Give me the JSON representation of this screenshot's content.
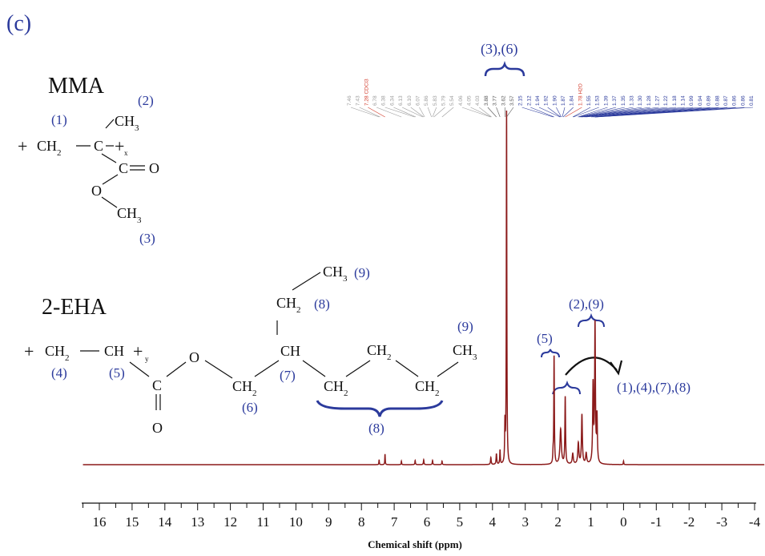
{
  "panel_label": "(c)",
  "mma": {
    "name": "MMA",
    "atoms": {
      "ch3_top": "CH",
      "ch3_top_sub": "3",
      "ch2": "CH",
      "ch2_sub": "2",
      "c": "C",
      "carbonyl_c": "C",
      "o_double": "O",
      "o_ester": "O",
      "ch3_bot": "CH",
      "ch3_bot_sub": "3",
      "x": "x"
    },
    "labels": {
      "l1": "(1)",
      "l2": "(2)",
      "l3": "(3)"
    }
  },
  "eha": {
    "name": "2-EHA",
    "atoms": {
      "ch2_main": "CH",
      "ch2_main_sub": "2",
      "ch_main": "CH",
      "y": "y",
      "c_carbonyl": "C",
      "o_double": "O",
      "o_ester": "O",
      "ch2_ester": "CH",
      "ch2_ester_sub": "2",
      "ch_branch": "CH",
      "ch2_ethyl": "CH",
      "ch2_ethyl_sub": "2",
      "ch3_ethyl": "CH",
      "ch3_ethyl_sub": "3",
      "ch2_a": "CH",
      "ch2_a_sub": "2",
      "ch2_b": "CH",
      "ch2_b_sub": "2",
      "ch2_c": "CH",
      "ch2_c_sub": "2",
      "ch3_end": "CH",
      "ch3_end_sub": "3"
    },
    "labels": {
      "l4": "(4)",
      "l5": "(5)",
      "l6": "(6)",
      "l7": "(7)",
      "l8a": "(8)",
      "l8b": "(8)",
      "l9a": "(9)",
      "l9b": "(9)"
    }
  },
  "annotations": {
    "a36": "(3),(6)",
    "a5": "(5)",
    "a29": "(2),(9)",
    "a1478": "(1),(4),(7),(8)"
  },
  "peak_list": {
    "gray": [
      "7.46",
      "7.43"
    ],
    "red_cdcl3": "7.28 CDCl3",
    "gray2": [
      "6.78",
      "6.38",
      "6.34",
      "6.13",
      "6.10",
      "6.07",
      "5.86",
      "5.83",
      "5.79",
      "5.54",
      "4.06",
      "4.05",
      "4.03"
    ],
    "dark": [
      "3.88",
      "3.77",
      "3.62",
      "3.57"
    ],
    "blue": [
      "2.15",
      "2.12",
      "1.94",
      "1.92",
      "1.90",
      "1.87",
      "1.84"
    ],
    "red_h2o": "1.78 H2O",
    "blue2": [
      "1.55",
      "1.53",
      "1.39",
      "1.37",
      "1.35",
      "1.33",
      "1.30",
      "1.28",
      "1.27",
      "1.22",
      "1.18",
      "1.14",
      "0.99",
      "0.94",
      "0.89",
      "0.88",
      "0.87",
      "0.86",
      "0.86",
      "0.81"
    ]
  },
  "chart_data": {
    "type": "line",
    "title": "",
    "xlabel": "Chemical shift (ppm)",
    "ylabel": "",
    "xlim": [
      16.5,
      -4.3
    ],
    "ylim": [
      0,
      1.0
    ],
    "x_reversed": true,
    "grid": false,
    "x_ticks": [
      "16",
      "15",
      "14",
      "13",
      "12",
      "11",
      "10",
      "9",
      "8",
      "7",
      "6",
      "5",
      "4",
      "3",
      "2",
      "1",
      "0",
      "-1",
      "-2",
      "-3",
      "-4"
    ],
    "line_color": "#8b1a1a",
    "peaks": [
      {
        "x": 7.46,
        "height": 0.014,
        "width": 0.008
      },
      {
        "x": 7.28,
        "height": 0.03,
        "width": 0.008
      },
      {
        "x": 6.78,
        "height": 0.01,
        "width": 0.008
      },
      {
        "x": 6.36,
        "height": 0.012,
        "width": 0.01
      },
      {
        "x": 6.1,
        "height": 0.014,
        "width": 0.01
      },
      {
        "x": 5.83,
        "height": 0.012,
        "width": 0.01
      },
      {
        "x": 5.54,
        "height": 0.01,
        "width": 0.01
      },
      {
        "x": 4.05,
        "height": 0.02,
        "width": 0.012
      },
      {
        "x": 3.88,
        "height": 0.03,
        "width": 0.012
      },
      {
        "x": 3.77,
        "height": 0.04,
        "width": 0.01
      },
      {
        "x": 3.62,
        "height": 0.11,
        "width": 0.01
      },
      {
        "x": 3.57,
        "height": 1.0,
        "width": 0.009
      },
      {
        "x": 2.15,
        "height": 0.025,
        "width": 0.01
      },
      {
        "x": 2.12,
        "height": 0.305,
        "width": 0.01
      },
      {
        "x": 1.92,
        "height": 0.1,
        "width": 0.025
      },
      {
        "x": 1.78,
        "height": 0.19,
        "width": 0.012
      },
      {
        "x": 1.55,
        "height": 0.03,
        "width": 0.02
      },
      {
        "x": 1.38,
        "height": 0.06,
        "width": 0.02
      },
      {
        "x": 1.27,
        "height": 0.14,
        "width": 0.016
      },
      {
        "x": 1.14,
        "height": 0.03,
        "width": 0.02
      },
      {
        "x": 0.93,
        "height": 0.22,
        "width": 0.015
      },
      {
        "x": 0.87,
        "height": 0.39,
        "width": 0.014
      },
      {
        "x": 0.81,
        "height": 0.13,
        "width": 0.014
      },
      {
        "x": 0.0,
        "height": 0.01,
        "width": 0.008
      }
    ]
  }
}
